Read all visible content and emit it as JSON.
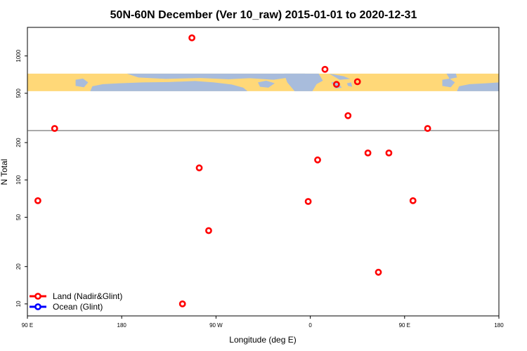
{
  "chart_data": {
    "type": "scatter",
    "title": "50N-60N December (Ver 10_raw)   2015-01-01 to 2020-12-31",
    "xlabel": "Longitude (deg E)",
    "ylabel": "N Total",
    "x_scale": "linear",
    "y_scale": "log",
    "xlim": [
      90,
      540
    ],
    "ylim": [
      8,
      1700
    ],
    "x_ticks": [
      {
        "value": 90,
        "label": "90 E"
      },
      {
        "value": 180,
        "label": "180"
      },
      {
        "value": 270,
        "label": "90 W"
      },
      {
        "value": 360,
        "label": "0"
      },
      {
        "value": 450,
        "label": "90 E"
      },
      {
        "value": 540,
        "label": "180"
      }
    ],
    "y_ticks": [
      {
        "value": 10,
        "label": "10"
      },
      {
        "value": 20,
        "label": "20"
      },
      {
        "value": 50,
        "label": "50"
      },
      {
        "value": 100,
        "label": "100"
      },
      {
        "value": 200,
        "label": "200"
      },
      {
        "value": 500,
        "label": "500"
      },
      {
        "value": 1000,
        "label": "1000"
      }
    ],
    "reference_line": {
      "y": 250
    },
    "map_strip": {
      "y_range": [
        520,
        720
      ],
      "land_color": "#ffd878",
      "ocean_color": "#a8bcdc"
    },
    "series": [
      {
        "name": "Land (Nadir&Glint)",
        "color": "#ff0000",
        "points": [
          {
            "x": 100,
            "y": 68
          },
          {
            "x": 116,
            "y": 260
          },
          {
            "x": 247,
            "y": 1400
          },
          {
            "x": 254,
            "y": 125
          },
          {
            "x": 263,
            "y": 39
          },
          {
            "x": 238,
            "y": 10
          },
          {
            "x": 358,
            "y": 67
          },
          {
            "x": 367,
            "y": 145
          },
          {
            "x": 374,
            "y": 780
          },
          {
            "x": 385,
            "y": 590
          },
          {
            "x": 396,
            "y": 330
          },
          {
            "x": 405,
            "y": 620
          },
          {
            "x": 415,
            "y": 165
          },
          {
            "x": 425,
            "y": 18
          },
          {
            "x": 435,
            "y": 165
          },
          {
            "x": 458,
            "y": 68
          },
          {
            "x": 472,
            "y": 260
          }
        ]
      },
      {
        "name": "Ocean (Glint)",
        "color": "#0000ff",
        "points": []
      }
    ],
    "legend_position": "bottom-left"
  }
}
